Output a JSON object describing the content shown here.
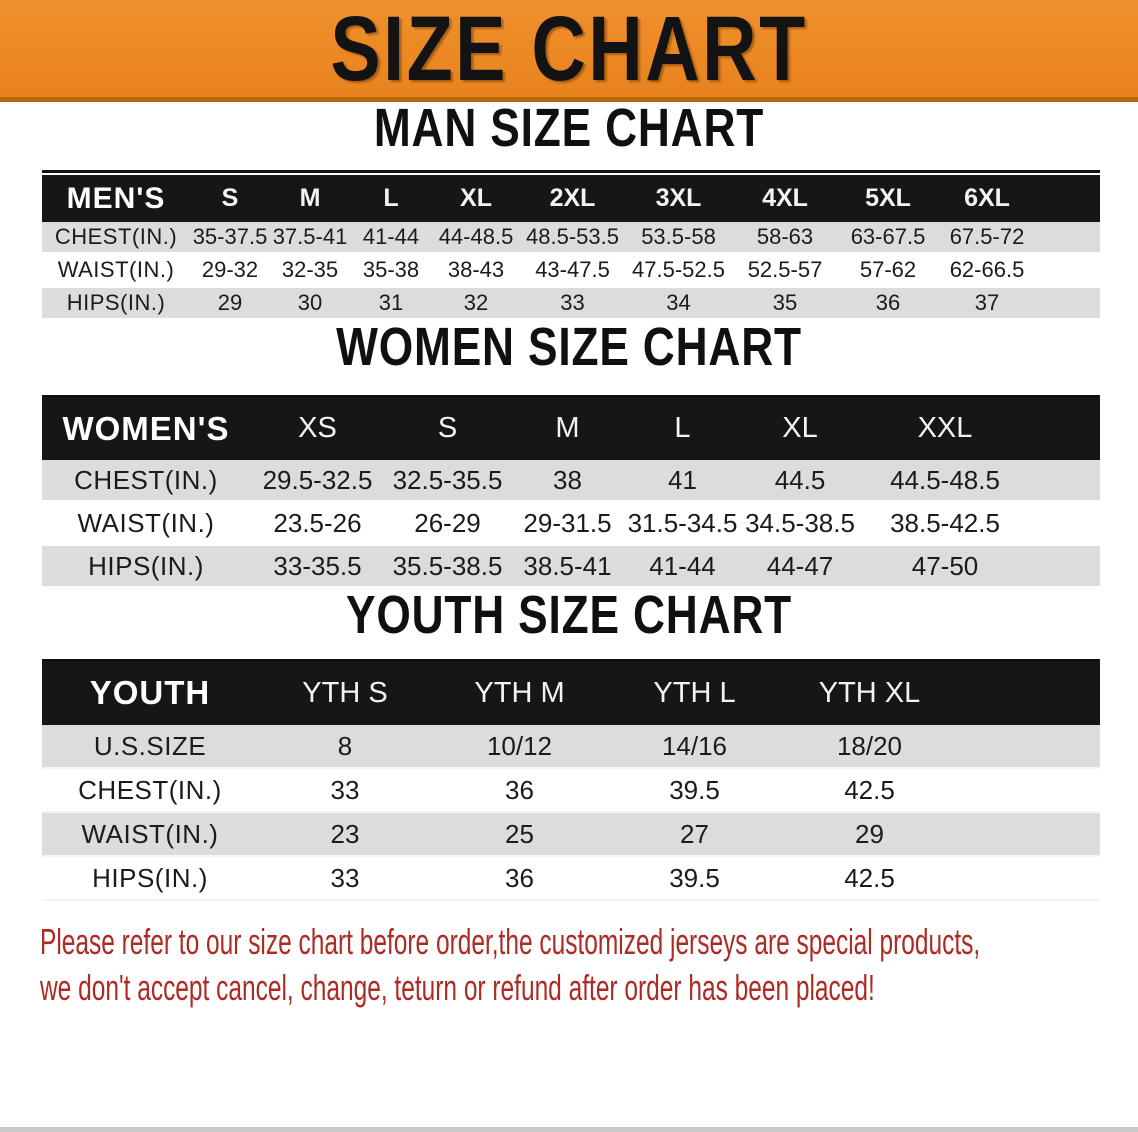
{
  "banner": {
    "title": "SIZE CHART"
  },
  "sections": [
    {
      "title": "MAN SIZE CHART",
      "group_label": "MEN'S",
      "columns": [
        "S",
        "M",
        "L",
        "XL",
        "2XL",
        "3XL",
        "4XL",
        "5XL",
        "6XL"
      ],
      "rows": [
        {
          "label": "CHEST(IN.)",
          "values": [
            "35-37.5",
            "37.5-41",
            "41-44",
            "44-48.5",
            "48.5-53.5",
            "53.5-58",
            "58-63",
            "63-67.5",
            "67.5-72"
          ]
        },
        {
          "label": "WAIST(IN.)",
          "values": [
            "29-32",
            "32-35",
            "35-38",
            "38-43",
            "43-47.5",
            "47.5-52.5",
            "52.5-57",
            "57-62",
            "62-66.5"
          ]
        },
        {
          "label": "HIPS(IN.)",
          "values": [
            "29",
            "30",
            "31",
            "32",
            "33",
            "34",
            "35",
            "36",
            "37"
          ]
        }
      ]
    },
    {
      "title": "WOMEN SIZE CHART",
      "group_label": "WOMEN'S",
      "columns": [
        "XS",
        "S",
        "M",
        "L",
        "XL",
        "XXL"
      ],
      "rows": [
        {
          "label": "CHEST(IN.)",
          "values": [
            "29.5-32.5",
            "32.5-35.5",
            "38",
            "41",
            "44.5",
            "44.5-48.5"
          ]
        },
        {
          "label": "WAIST(IN.)",
          "values": [
            "23.5-26",
            "26-29",
            "29-31.5",
            "31.5-34.5",
            "34.5-38.5",
            "38.5-42.5"
          ]
        },
        {
          "label": "HIPS(IN.)",
          "values": [
            "33-35.5",
            "35.5-38.5",
            "38.5-41",
            "41-44",
            "44-47",
            "47-50"
          ]
        }
      ]
    },
    {
      "title": "YOUTH SIZE CHART",
      "group_label": "YOUTH",
      "columns": [
        "YTH S",
        "YTH M",
        "YTH L",
        "YTH XL"
      ],
      "rows": [
        {
          "label": "U.S.SIZE",
          "values": [
            "8",
            "10/12",
            "14/16",
            "18/20"
          ]
        },
        {
          "label": "CHEST(IN.)",
          "values": [
            "33",
            "36",
            "39.5",
            "42.5"
          ]
        },
        {
          "label": "WAIST(IN.)",
          "values": [
            "23",
            "25",
            "27",
            "29"
          ]
        },
        {
          "label": "HIPS(IN.)",
          "values": [
            "33",
            "36",
            "39.5",
            "42.5"
          ]
        }
      ]
    }
  ],
  "footer": {
    "lines": [
      "Please refer to our size chart before order,the customized jerseys are special products,",
      "we don't accept cancel, change, teturn or refund after order has been placed!"
    ]
  },
  "colors": {
    "banner_orange": "#EC8720",
    "banner_border": "#B4690F",
    "header_black": "#161616",
    "row_gray": "#DCDCDC",
    "note_red": "#AE2A24"
  }
}
